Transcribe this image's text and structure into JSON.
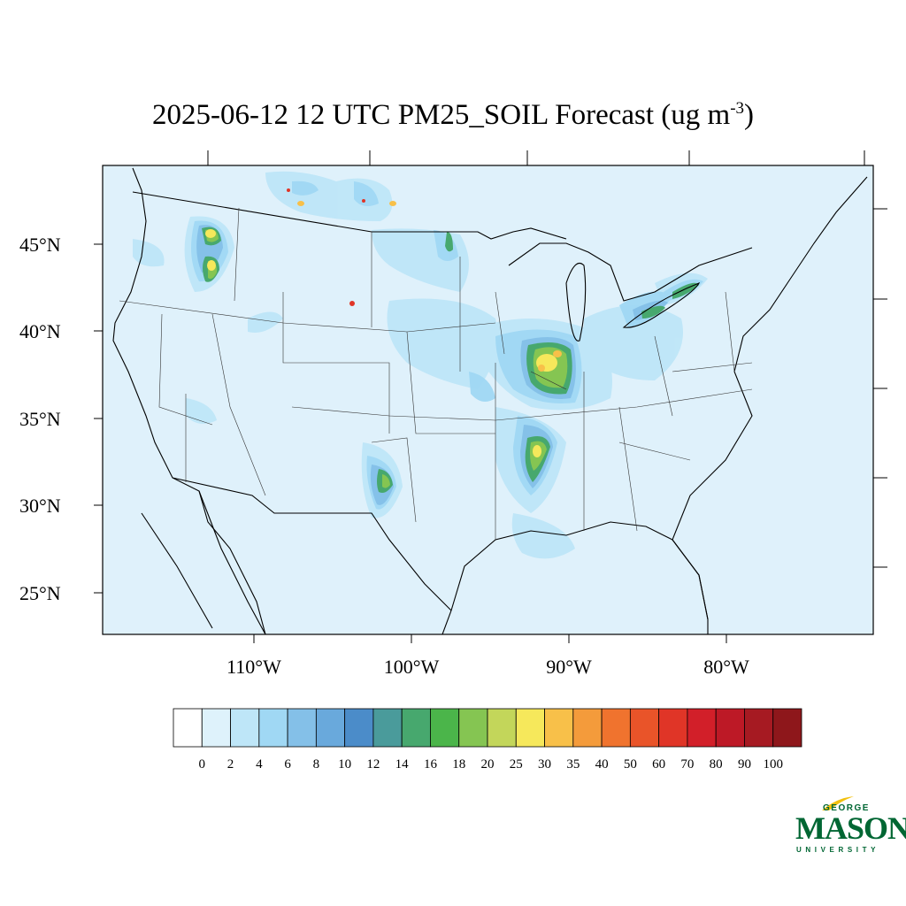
{
  "title": {
    "main": "2025-06-12 12 UTC PM25_SOIL Forecast (ug m",
    "superscript": "-3",
    "close": ")"
  },
  "map": {
    "lat_labels": [
      "45°N",
      "40°N",
      "35°N",
      "30°N",
      "25°N"
    ],
    "lon_labels": [
      "110°W",
      "100°W",
      "90°W",
      "80°W"
    ],
    "background_color": "#dff1fb",
    "hotspots": [
      {
        "region": "Oregon / Idaho border",
        "level": "20-25"
      },
      {
        "region": "Missouri / Illinois (St. Louis area)",
        "level": "20-30"
      },
      {
        "region": "Arkansas / Mississippi delta",
        "level": "18-25"
      },
      {
        "region": "Lake Erie shoreline",
        "level": "14-18"
      },
      {
        "region": "Texas panhandle",
        "level": "12-16"
      }
    ]
  },
  "colorbar": {
    "labels": [
      "0",
      "2",
      "4",
      "6",
      "8",
      "10",
      "12",
      "14",
      "16",
      "18",
      "20",
      "25",
      "30",
      "35",
      "40",
      "50",
      "60",
      "70",
      "80",
      "90",
      "100"
    ],
    "colors": [
      "#ffffff",
      "#def2fb",
      "#bee6f8",
      "#a0d8f4",
      "#84c0e8",
      "#69a9dc",
      "#4b8cc9",
      "#4a9b9b",
      "#47a86e",
      "#4bb54a",
      "#85c552",
      "#c3d65a",
      "#f6e85b",
      "#f8c049",
      "#f49b3b",
      "#f0732e",
      "#e95429",
      "#e03527",
      "#d21f29",
      "#bd1926",
      "#a61a22",
      "#8e171b"
    ]
  },
  "logo": {
    "line1": "GEORGE",
    "line2": "MASON",
    "line3": "UNIVERSITY",
    "color": "#006633"
  }
}
